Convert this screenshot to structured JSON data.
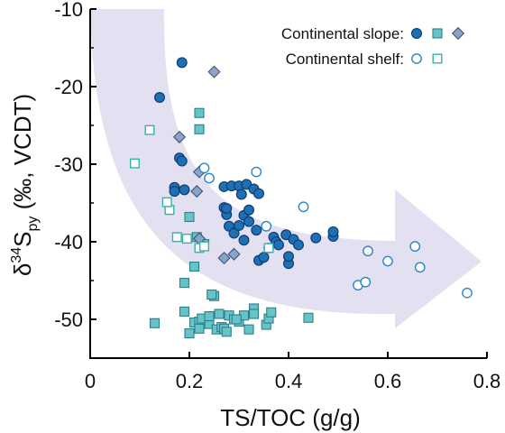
{
  "chart_data": {
    "type": "scatter",
    "xlabel": "TS/TOC (g/g)",
    "ylabel": {
      "prefix": "δ",
      "sup": "34",
      "main": "S",
      "sub": "py",
      "suffix": " (‰, VCDT)"
    },
    "xlim": [
      0,
      0.8
    ],
    "ylim": [
      -55,
      -10
    ],
    "xticks": [
      "0",
      "0.2",
      "0.4",
      "0.6",
      "0.8"
    ],
    "yticks": [
      "-10",
      "-20",
      "-30",
      "-40",
      "-50"
    ],
    "grid": false,
    "legend": {
      "placement": "top-right",
      "rows": [
        {
          "label": "Continental slope:",
          "markers": [
            "circle-filled",
            "square-filled",
            "diamond-filled"
          ]
        },
        {
          "label": "Continental shelf:",
          "markers": [
            "circle-open",
            "square-open"
          ]
        }
      ]
    },
    "colors": {
      "circle_filled": "#1f6fb4",
      "circle_edge": "#0d3f73",
      "square_filled": "#66c3c7",
      "square_edge": "#2f7f8a",
      "diamond_filled": "#8aa4c8",
      "diamond_edge": "#3d5578",
      "open_circle": "#2a86c6",
      "open_square": "#35b3a8",
      "arrow": "#e3e1f1"
    },
    "series": [
      {
        "name": "Continental slope",
        "marker": "circle-filled",
        "points": [
          [
            0.185,
            -16.9
          ],
          [
            0.18,
            -29.2
          ],
          [
            0.185,
            -29.6
          ],
          [
            0.17,
            -33.0
          ],
          [
            0.17,
            -33.5
          ],
          [
            0.19,
            -33.3
          ],
          [
            0.14,
            -21.4
          ],
          [
            0.27,
            -32.9
          ],
          [
            0.285,
            -32.8
          ],
          [
            0.3,
            -32.8
          ],
          [
            0.305,
            -33.9
          ],
          [
            0.31,
            -36.6
          ],
          [
            0.315,
            -32.6
          ],
          [
            0.33,
            -33.2
          ],
          [
            0.34,
            -33.8
          ],
          [
            0.27,
            -35.6
          ],
          [
            0.275,
            -36.5
          ],
          [
            0.28,
            -38.0
          ],
          [
            0.29,
            -38.9
          ],
          [
            0.3,
            -37.9
          ],
          [
            0.31,
            -39.8
          ],
          [
            0.32,
            -37.4
          ],
          [
            0.32,
            -35.9
          ],
          [
            0.34,
            -42.4
          ],
          [
            0.35,
            -42.0
          ],
          [
            0.335,
            -38.5
          ],
          [
            0.37,
            -39.4
          ],
          [
            0.375,
            -40.0
          ],
          [
            0.38,
            -40.4
          ],
          [
            0.395,
            -39.1
          ],
          [
            0.4,
            -42.8
          ],
          [
            0.4,
            -41.9
          ],
          [
            0.41,
            -39.7
          ],
          [
            0.42,
            -40.4
          ],
          [
            0.455,
            -39.5
          ],
          [
            0.49,
            -39.3
          ],
          [
            0.49,
            -38.7
          ],
          [
            0.275,
            -35.7
          ]
        ]
      },
      {
        "name": "Continental slope",
        "marker": "square-filled",
        "points": [
          [
            0.22,
            -23.4
          ],
          [
            0.22,
            -25.5
          ],
          [
            0.2,
            -36.8
          ],
          [
            0.215,
            -39.4
          ],
          [
            0.21,
            -43.2
          ],
          [
            0.19,
            -45.3
          ],
          [
            0.13,
            -50.5
          ],
          [
            0.19,
            -49.0
          ],
          [
            0.2,
            -51.8
          ],
          [
            0.21,
            -50.4
          ],
          [
            0.22,
            -50.3
          ],
          [
            0.22,
            -51.2
          ],
          [
            0.225,
            -49.9
          ],
          [
            0.24,
            -50.6
          ],
          [
            0.24,
            -49.6
          ],
          [
            0.25,
            -47.0
          ],
          [
            0.255,
            -51.3
          ],
          [
            0.26,
            -49.3
          ],
          [
            0.265,
            -51.0
          ],
          [
            0.27,
            -51.2
          ],
          [
            0.275,
            -51.6
          ],
          [
            0.28,
            -49.5
          ],
          [
            0.29,
            -50.0
          ],
          [
            0.3,
            -50.3
          ],
          [
            0.31,
            -49.5
          ],
          [
            0.32,
            -51.3
          ],
          [
            0.33,
            -48.6
          ],
          [
            0.33,
            -49.3
          ],
          [
            0.355,
            -50.7
          ],
          [
            0.36,
            -49.9
          ],
          [
            0.365,
            -49.1
          ],
          [
            0.245,
            -46.8
          ],
          [
            0.23,
            -40.3
          ],
          [
            0.44,
            -49.8
          ],
          [
            0.295,
            -50.0
          ]
        ]
      },
      {
        "name": "Continental slope",
        "marker": "diamond-filled",
        "points": [
          [
            0.25,
            -18.1
          ],
          [
            0.18,
            -26.5
          ],
          [
            0.22,
            -31.0
          ],
          [
            0.215,
            -33.5
          ],
          [
            0.22,
            -39.6
          ],
          [
            0.27,
            -42.1
          ],
          [
            0.29,
            -41.6
          ]
        ]
      },
      {
        "name": "Continental shelf",
        "marker": "circle-open",
        "points": [
          [
            0.23,
            -30.5
          ],
          [
            0.24,
            -31.8
          ],
          [
            0.335,
            -31.0
          ],
          [
            0.355,
            -38.0
          ],
          [
            0.43,
            -35.5
          ],
          [
            0.36,
            -40.8
          ],
          [
            0.56,
            -41.2
          ],
          [
            0.54,
            -45.6
          ],
          [
            0.555,
            -45.2
          ],
          [
            0.6,
            -42.5
          ],
          [
            0.655,
            -40.6
          ],
          [
            0.665,
            -43.3
          ],
          [
            0.76,
            -46.6
          ]
        ]
      },
      {
        "name": "Continental shelf",
        "marker": "square-open",
        "points": [
          [
            0.12,
            -25.6
          ],
          [
            0.09,
            -29.9
          ],
          [
            0.16,
            -35.9
          ],
          [
            0.155,
            -34.9
          ],
          [
            0.175,
            -39.4
          ],
          [
            0.195,
            -39.6
          ],
          [
            0.22,
            -40.8
          ],
          [
            0.23,
            -40.6
          ],
          [
            0.36,
            -40.8
          ]
        ]
      }
    ]
  }
}
